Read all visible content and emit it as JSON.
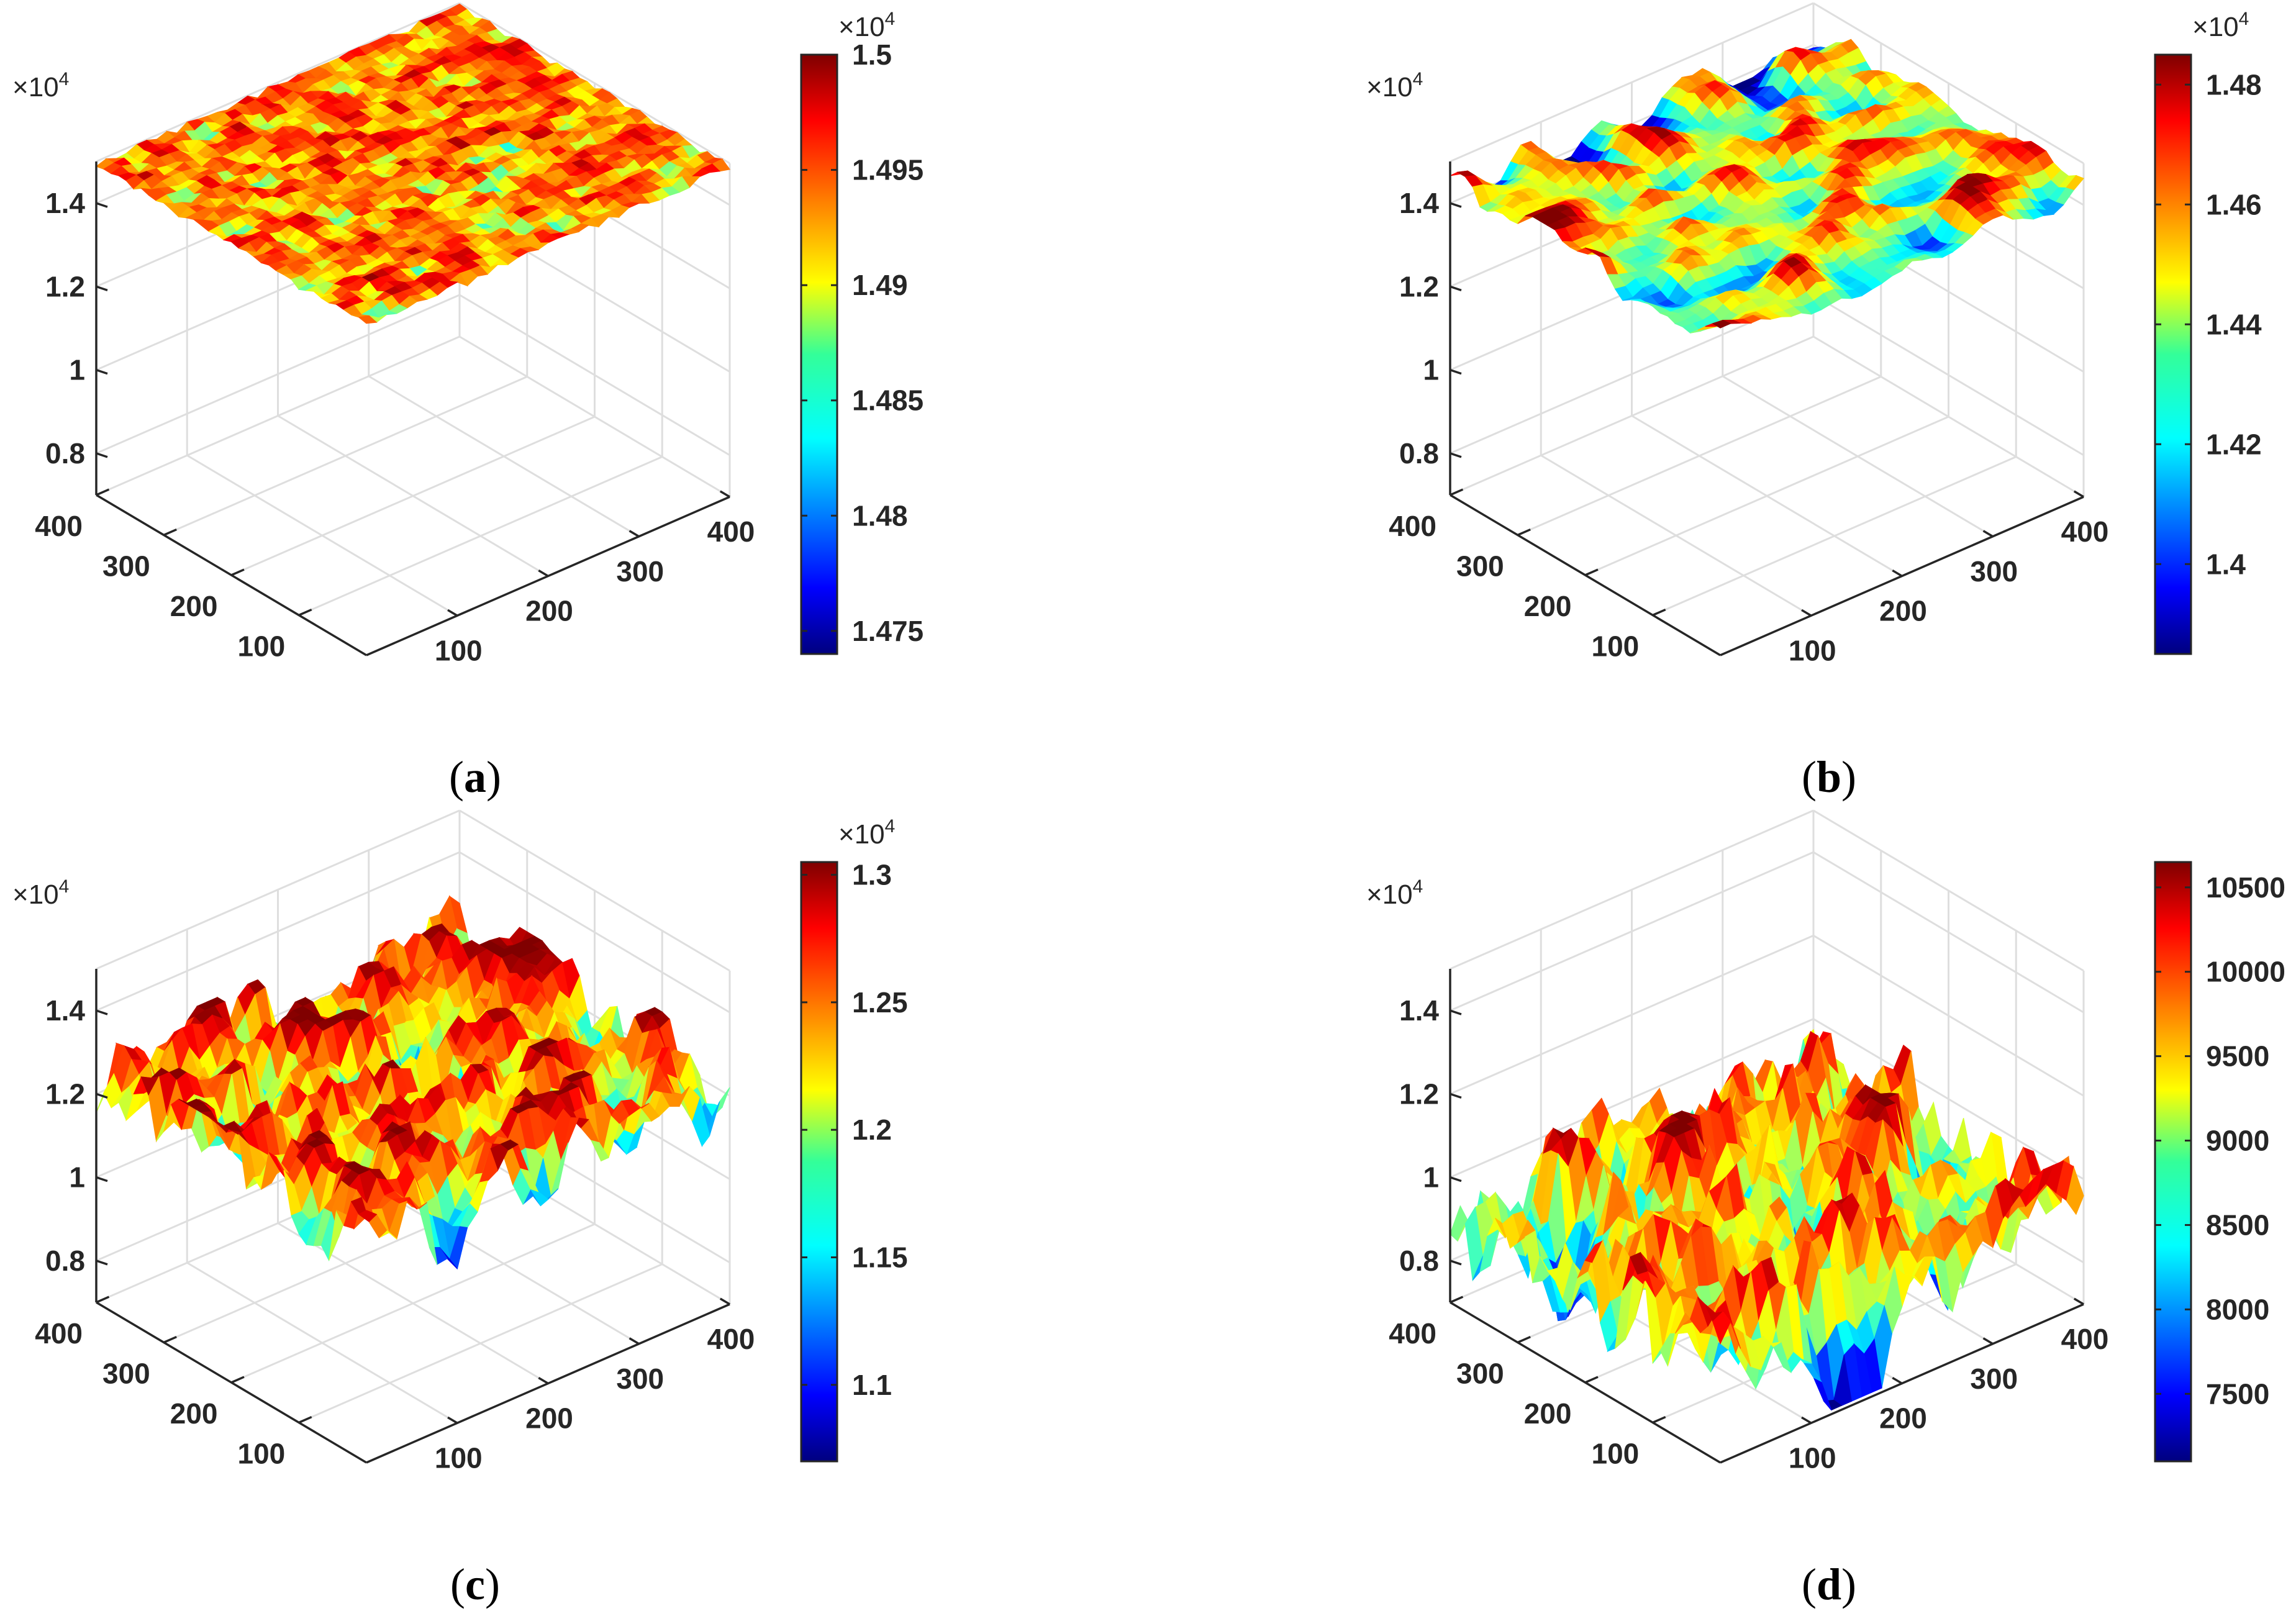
{
  "figure": {
    "panels": [
      {
        "caption": "a",
        "exponent_label": "×10",
        "exponent_power": "4"
      },
      {
        "caption": "b",
        "exponent_label": "×10",
        "exponent_power": "4"
      },
      {
        "caption": "c",
        "exponent_label": "×10",
        "exponent_power": "4"
      },
      {
        "caption": "d",
        "exponent_label": "×10",
        "exponent_power": "4"
      }
    ]
  },
  "chart_data": [
    {
      "type": "surface",
      "panel": "a",
      "x_ticks": [
        "100",
        "200",
        "300",
        "400"
      ],
      "y_ticks": [
        "100",
        "200",
        "300",
        "400"
      ],
      "z_ticks": [
        "0.8",
        "1",
        "1.2",
        "1.4"
      ],
      "z_multiplier": "×10^4",
      "zlim": [
        7000,
        15000
      ],
      "surface_range": [
        14740,
        15000
      ],
      "surface_mean": 14980,
      "roughness": "blocky",
      "colorbar": {
        "ticks": [
          "1.475",
          "1.48",
          "1.485",
          "1.49",
          "1.495",
          "1.5"
        ],
        "multiplier": "×10^4",
        "range": [
          14740,
          15000
        ]
      },
      "colormap": "jet"
    },
    {
      "type": "surface",
      "panel": "b",
      "x_ticks": [
        "100",
        "200",
        "300",
        "400"
      ],
      "y_ticks": [
        "100",
        "200",
        "300",
        "400"
      ],
      "z_ticks": [
        "0.8",
        "1",
        "1.2",
        "1.4"
      ],
      "z_multiplier": "×10^4",
      "zlim": [
        7000,
        15000
      ],
      "surface_range": [
        13850,
        14850
      ],
      "surface_mean": 14400,
      "roughness": "medium",
      "colorbar": {
        "ticks": [
          "1.4",
          "1.42",
          "1.44",
          "1.46",
          "1.48"
        ],
        "multiplier": "×10^4",
        "range": [
          13850,
          14850
        ]
      },
      "colormap": "jet"
    },
    {
      "type": "surface",
      "panel": "c",
      "x_ticks": [
        "100",
        "200",
        "300",
        "400"
      ],
      "y_ticks": [
        "100",
        "200",
        "300",
        "400"
      ],
      "z_ticks": [
        "0.8",
        "1",
        "1.2",
        "1.4"
      ],
      "z_multiplier": "×10^4",
      "zlim": [
        7000,
        15000
      ],
      "surface_range": [
        10700,
        13050
      ],
      "surface_mean": 11950,
      "roughness": "spiky",
      "colorbar": {
        "ticks": [
          "1.1",
          "1.15",
          "1.2",
          "1.25",
          "1.3"
        ],
        "multiplier": "×10^4",
        "range": [
          10700,
          13050
        ]
      },
      "colormap": "jet"
    },
    {
      "type": "surface",
      "panel": "d",
      "x_ticks": [
        "100",
        "200",
        "300",
        "400"
      ],
      "y_ticks": [
        "100",
        "200",
        "300",
        "400"
      ],
      "z_ticks": [
        "0.8",
        "1",
        "1.2",
        "1.4"
      ],
      "z_multiplier": "×10^4",
      "zlim": [
        7000,
        15000
      ],
      "surface_range": [
        7100,
        10650
      ],
      "surface_mean": 8900,
      "roughness": "spiky",
      "colorbar": {
        "ticks": [
          "7500",
          "8000",
          "8500",
          "9000",
          "9500",
          "10000",
          "10500"
        ],
        "multiplier": "",
        "range": [
          7100,
          10650
        ]
      },
      "colormap": "jet"
    }
  ]
}
